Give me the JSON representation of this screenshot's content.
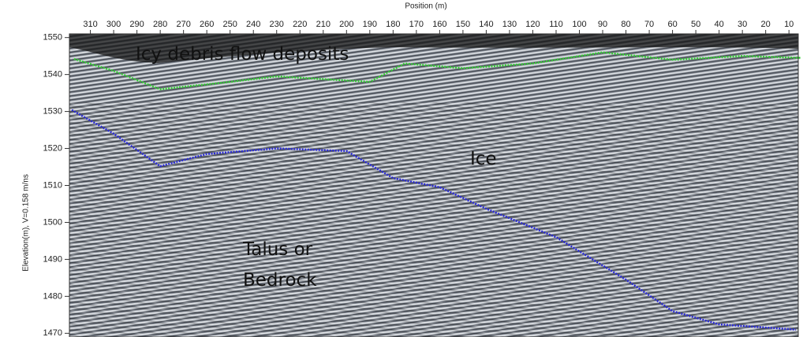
{
  "chart_data": {
    "type": "line",
    "xlabel": "Position (m)",
    "ylabel": "Elevation(m), V=0.158 m/ns",
    "xlim": [
      319,
      6
    ],
    "ylim": [
      1469,
      1551
    ],
    "xticks": [
      310,
      300,
      290,
      280,
      270,
      260,
      250,
      240,
      230,
      220,
      210,
      200,
      190,
      180,
      170,
      160,
      150,
      140,
      130,
      120,
      110,
      100,
      90,
      80,
      70,
      60,
      50,
      40,
      30,
      20,
      10
    ],
    "yticks": [
      1470,
      1480,
      1490,
      1500,
      1510,
      1520,
      1530,
      1540,
      1550
    ],
    "annotations": [
      "Icy debris flow deposits",
      "Ice",
      "Talus or Bedrock"
    ],
    "series": [
      {
        "color": "#33cc33",
        "x": [
          317,
          300,
          280,
          250,
          230,
          190,
          175,
          150,
          120,
          90,
          60,
          30,
          5
        ],
        "values": [
          1544.2,
          1541,
          1536,
          1538,
          1539.5,
          1538,
          1543,
          1541.7,
          1543,
          1546,
          1544,
          1545,
          1544.5
        ]
      },
      {
        "color": "#2a2ad8",
        "x": [
          318,
          300,
          280,
          260,
          230,
          200,
          180,
          160,
          140,
          110,
          80,
          60,
          40,
          7
        ],
        "values": [
          1530.4,
          1524,
          1515.2,
          1518.5,
          1520,
          1519.3,
          1512,
          1509.5,
          1503.7,
          1496,
          1484.5,
          1476,
          1472.4,
          1471
        ]
      }
    ]
  }
}
